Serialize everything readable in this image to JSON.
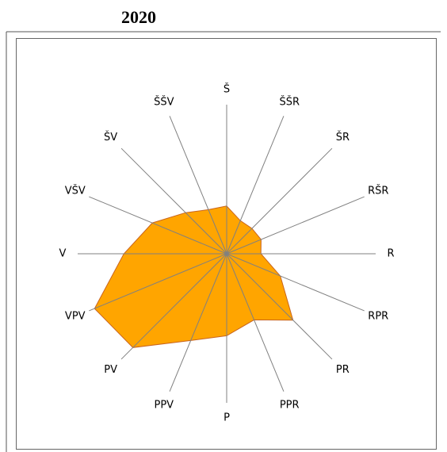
{
  "chart_data": {
    "type": "radar",
    "title": "2020",
    "categories": [
      "Š",
      "ŠŠR",
      "ŠR",
      "RŠR",
      "R",
      "RPR",
      "PR",
      "PPR",
      "P",
      "PPV",
      "PV",
      "VPV",
      "V",
      "VŠV",
      "ŠV",
      "ŠŠV"
    ],
    "values": [
      32,
      24,
      24,
      25,
      23,
      39,
      63,
      48,
      55,
      63,
      89,
      96,
      69,
      54,
      39,
      32
    ],
    "rlim": [
      0,
      100
    ],
    "color": "#ffa500"
  }
}
